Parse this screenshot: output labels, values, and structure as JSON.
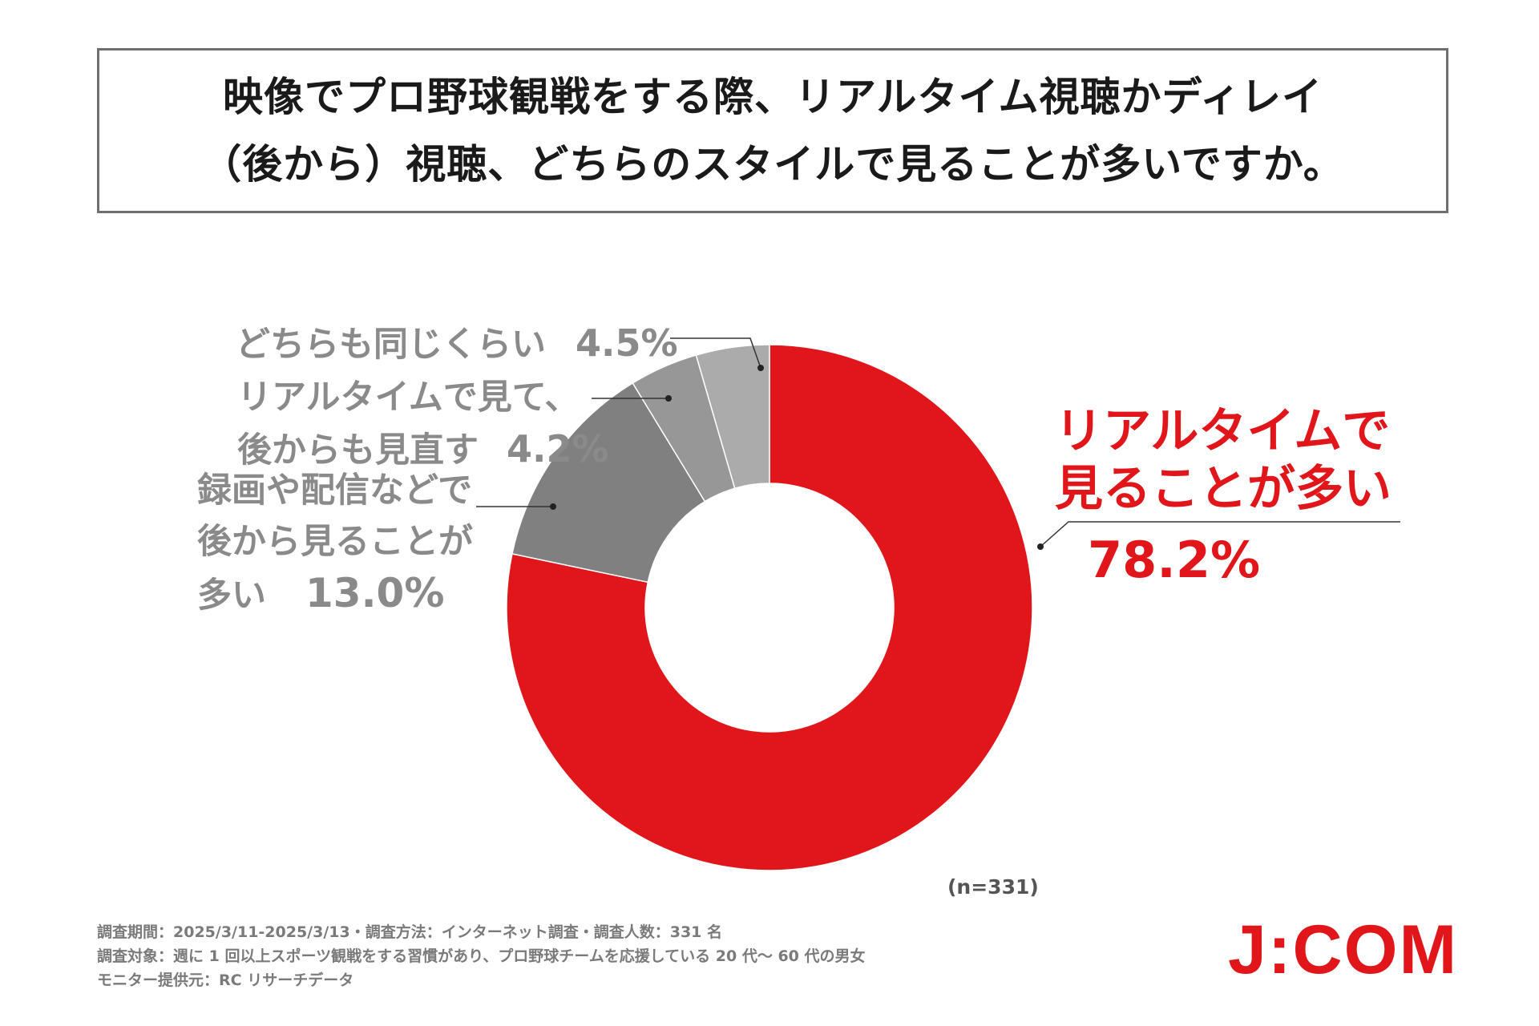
{
  "title": {
    "line1": "映像でプロ野球観戦をする際、リアルタイム視聴かディレイ",
    "line2": "（後から）視聴、どちらのスタイルで見ることが多いですか。"
  },
  "chart_data": {
    "type": "pie",
    "style": "donut",
    "title": "映像でプロ野球観戦をする際、リアルタイム視聴かディレイ（後から）視聴、どちらのスタイルで見ることが多いですか。",
    "slices": [
      {
        "label": "リアルタイムで見ることが多い",
        "value": 78.2,
        "display": "78.2%",
        "color": "#e0161b"
      },
      {
        "label": "録画や配信などで後から見ることが多い",
        "value": 13.0,
        "display": "13.0%",
        "color": "#808080"
      },
      {
        "label": "リアルタイムで見て、後からも見直す",
        "value": 4.2,
        "display": "4.2%",
        "color": "#979797"
      },
      {
        "label": "どちらも同じくらい",
        "value": 4.5,
        "display": "4.5%",
        "color": "#ababab"
      }
    ],
    "sample_note": "(n=331)"
  },
  "labels": {
    "real_time": {
      "line1": "リアルタイムで",
      "line2": "見ることが多い",
      "pct": "78.2%"
    },
    "recorded": {
      "line1": "録画や配信などで",
      "line2": "後から見ることが",
      "line3": "多い",
      "pct": "13.0%"
    },
    "both_watch": {
      "line1": "リアルタイムで見て、",
      "line2": "後からも見直す",
      "pct": "4.2%"
    },
    "same": {
      "line1": "どちらも同じくらい",
      "pct": "4.5%"
    }
  },
  "footer": {
    "line1": "調査期間：2025/3/11-2025/3/13・調査方法：インターネット調査・調査人数：331 名",
    "line2": "調査対象：週に 1 回以上スポーツ観戦をする習慣があり、プロ野球チームを応援している 20 代～ 60 代の男女",
    "line3": "モニター提供元：RC リサーチデータ"
  },
  "logo": "J:COM"
}
